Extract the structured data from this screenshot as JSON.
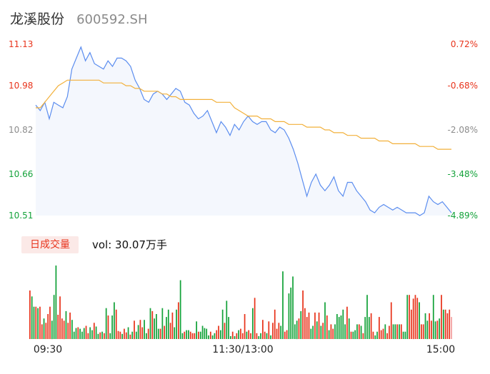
{
  "stock": {
    "name": "龙溪股份",
    "code": "600592.SH"
  },
  "volume": {
    "button_label": "日成交量",
    "value_text": "vol: 30.07万手"
  },
  "colors": {
    "price_line": "#5b8def",
    "avg_line": "#f2b03a",
    "area_fill": "#f4f7fd",
    "up": "#e8341c",
    "down": "#14a23a",
    "last_bar": "#f4a0a0"
  },
  "chart_data": {
    "type": "line",
    "price_axis": {
      "ticks": [
        "11.13",
        "10.98",
        "10.82",
        "10.66",
        "10.51"
      ],
      "tick_values": [
        11.13,
        10.98,
        10.82,
        10.66,
        10.51
      ],
      "tick_colors": [
        "#e8341c",
        "#e8341c",
        "#8c8c8c",
        "#14a23a",
        "#14a23a"
      ],
      "ylim": [
        10.51,
        11.13
      ]
    },
    "percent_axis": {
      "ticks": [
        "0.72%",
        "-0.68%",
        "-2.08%",
        "-3.48%",
        "-4.89%"
      ],
      "tick_colors": [
        "#e8341c",
        "#e8341c",
        "#8c8c8c",
        "#14a23a",
        "#14a23a"
      ]
    },
    "x_ticks": [
      "09:30",
      "11:30/13:00",
      "15:00"
    ],
    "series": [
      {
        "role": "price",
        "values": [
          10.91,
          10.89,
          10.92,
          10.86,
          10.92,
          10.91,
          10.9,
          10.94,
          11.04,
          11.08,
          11.12,
          11.07,
          11.1,
          11.06,
          11.05,
          11.04,
          11.07,
          11.05,
          11.08,
          11.08,
          11.07,
          11.05,
          11.0,
          10.97,
          10.93,
          10.92,
          10.95,
          10.96,
          10.95,
          10.93,
          10.95,
          10.97,
          10.96,
          10.92,
          10.91,
          10.88,
          10.86,
          10.87,
          10.89,
          10.85,
          10.81,
          10.85,
          10.83,
          10.8,
          10.84,
          10.82,
          10.85,
          10.87,
          10.85,
          10.84,
          10.85,
          10.85,
          10.82,
          10.81,
          10.83,
          10.82,
          10.79,
          10.75,
          10.7,
          10.64,
          10.58,
          10.63,
          10.66,
          10.62,
          10.6,
          10.62,
          10.65,
          10.6,
          10.58,
          10.63,
          10.63,
          10.6,
          10.58,
          10.56,
          10.53,
          10.52,
          10.54,
          10.55,
          10.54,
          10.53,
          10.54,
          10.53,
          10.52,
          10.52,
          10.52,
          10.51,
          10.52,
          10.58,
          10.56,
          10.55,
          10.56,
          10.54,
          10.52
        ]
      },
      {
        "role": "average",
        "values": [
          10.9,
          10.9,
          10.92,
          10.94,
          10.96,
          10.98,
          10.99,
          11.0,
          11.0,
          11.0,
          11.0,
          11.0,
          11.0,
          11.0,
          11.0,
          10.99,
          10.99,
          10.99,
          10.99,
          10.99,
          10.98,
          10.98,
          10.97,
          10.97,
          10.96,
          10.96,
          10.96,
          10.96,
          10.95,
          10.95,
          10.94,
          10.94,
          10.93,
          10.93,
          10.93,
          10.93,
          10.93,
          10.93,
          10.93,
          10.93,
          10.92,
          10.92,
          10.92,
          10.92,
          10.9,
          10.89,
          10.88,
          10.87,
          10.87,
          10.87,
          10.86,
          10.86,
          10.86,
          10.85,
          10.85,
          10.85,
          10.84,
          10.84,
          10.84,
          10.84,
          10.83,
          10.83,
          10.83,
          10.83,
          10.82,
          10.82,
          10.81,
          10.81,
          10.81,
          10.8,
          10.8,
          10.8,
          10.79,
          10.79,
          10.79,
          10.79,
          10.78,
          10.78,
          10.78,
          10.77,
          10.77,
          10.77,
          10.77,
          10.77,
          10.77,
          10.76,
          10.76,
          10.76,
          10.76,
          10.75,
          10.75,
          10.75,
          10.75
        ]
      }
    ],
    "volume_series": {
      "values": [
        66,
        58,
        44,
        44,
        42,
        44,
        20,
        28,
        22,
        34,
        44,
        25,
        60,
        100,
        33,
        58,
        28,
        25,
        38,
        22,
        36,
        26,
        10,
        15,
        16,
        14,
        10,
        15,
        18,
        8,
        16,
        12,
        22,
        17,
        7,
        9,
        10,
        8,
        42,
        32,
        8,
        32,
        50,
        40,
        11,
        10,
        7,
        14,
        9,
        16,
        6,
        10,
        25,
        10,
        19,
        26,
        16,
        26,
        8,
        14,
        42,
        38,
        28,
        34,
        14,
        14,
        42,
        18,
        30,
        40,
        22,
        36,
        16,
        40,
        50,
        80,
        8,
        10,
        12,
        12,
        10,
        8,
        8,
        24,
        10,
        10,
        18,
        15,
        14,
        5,
        10,
        5,
        8,
        12,
        18,
        12,
        40,
        22,
        52,
        30,
        4,
        10,
        4,
        8,
        12,
        14,
        8,
        34,
        10,
        12,
        8,
        42,
        56,
        8,
        4,
        8,
        26,
        10,
        8,
        24,
        5,
        22,
        40,
        14,
        22,
        18,
        92,
        10,
        12,
        62,
        70,
        85,
        20,
        25,
        28,
        38,
        66,
        42,
        30,
        36,
        14,
        18,
        36,
        24,
        36,
        18,
        22,
        50,
        32,
        12,
        20,
        14,
        20,
        34,
        30,
        32,
        40,
        20,
        44,
        28,
        10,
        10,
        12,
        20,
        20,
        18,
        8,
        30,
        60,
        30,
        35,
        10,
        5,
        10,
        30,
        12,
        14,
        20,
        8,
        18,
        50,
        20,
        20,
        20,
        20,
        20,
        10,
        10,
        60,
        60,
        40,
        55,
        60,
        56,
        50,
        20,
        20,
        35,
        25,
        35,
        25,
        60,
        24,
        25,
        28,
        60,
        40,
        40,
        35,
        40,
        30
      ],
      "colors": [
        "up",
        "down",
        "down",
        "up",
        "down",
        "up",
        "up",
        "down",
        "up",
        "up",
        "up",
        "down",
        "down",
        "down",
        "up",
        "up",
        "up",
        "up",
        "down",
        "up",
        "up",
        "down",
        "down",
        "down",
        "up",
        "down",
        "down",
        "down",
        "up",
        "up",
        "down",
        "down",
        "up",
        "down",
        "down",
        "up",
        "down",
        "up",
        "down",
        "up",
        "down",
        "down",
        "down",
        "up",
        "up",
        "up",
        "down",
        "up",
        "up",
        "down",
        "up",
        "down",
        "up",
        "down",
        "down",
        "up",
        "up",
        "down",
        "down",
        "up",
        "down",
        "up",
        "down",
        "down",
        "down",
        "up",
        "down",
        "up",
        "down",
        "down",
        "up",
        "up",
        "down",
        "down",
        "up",
        "down",
        "down",
        "up",
        "down",
        "down",
        "up",
        "up",
        "up",
        "down",
        "up",
        "down",
        "down",
        "down",
        "down",
        "down",
        "up",
        "down",
        "down",
        "up",
        "up",
        "down",
        "down",
        "up",
        "down",
        "down",
        "down",
        "up",
        "down",
        "up",
        "down",
        "up",
        "up",
        "up",
        "down",
        "up",
        "up",
        "down",
        "up",
        "up",
        "down",
        "down",
        "up",
        "up",
        "down",
        "up",
        "down",
        "up",
        "up",
        "up",
        "up",
        "down",
        "down",
        "up",
        "up",
        "down",
        "down",
        "down",
        "down",
        "down",
        "up",
        "down",
        "up",
        "up",
        "up",
        "up",
        "down",
        "down",
        "up",
        "down",
        "up",
        "down",
        "up",
        "down",
        "up",
        "down",
        "up",
        "up",
        "down",
        "down",
        "down",
        "down",
        "down",
        "down",
        "up",
        "down",
        "up",
        "down",
        "down",
        "down",
        "up",
        "down",
        "up",
        "down",
        "down",
        "down",
        "up",
        "up",
        "down",
        "down",
        "up",
        "up",
        "up",
        "down",
        "up",
        "up",
        "up",
        "down",
        "down",
        "up",
        "down",
        "up",
        "down",
        "down",
        "down",
        "up",
        "up",
        "up",
        "up",
        "up",
        "down",
        "up",
        "up",
        "down",
        "down",
        "up",
        "up",
        "down",
        "down",
        "up",
        "down",
        "up",
        "down",
        "up",
        "up",
        "up",
        "down"
      ]
    }
  }
}
